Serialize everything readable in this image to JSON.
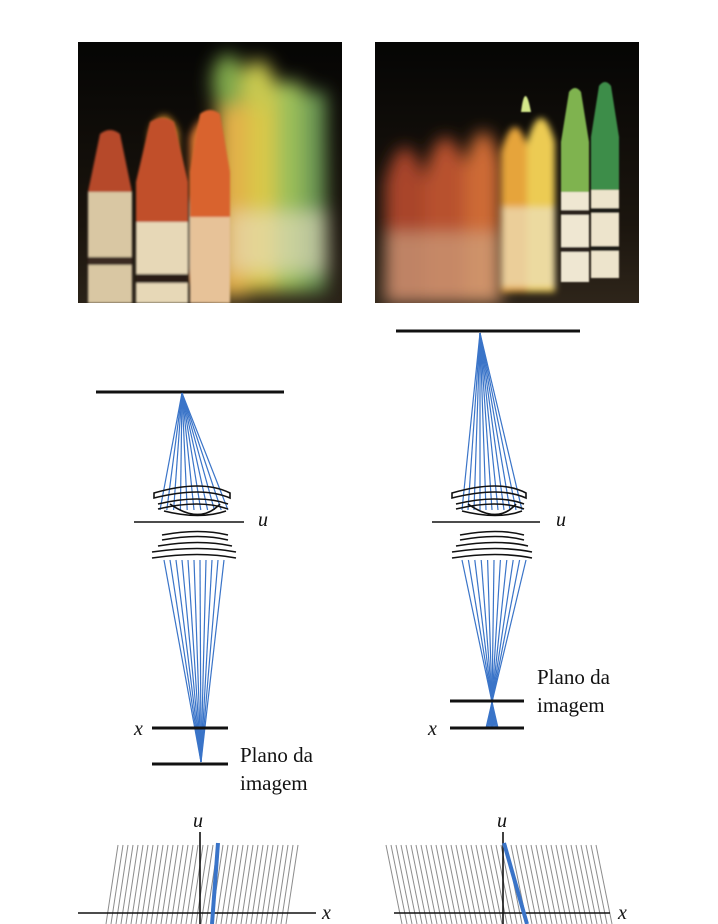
{
  "labels": {
    "axis_u": "u",
    "axis_x": "x",
    "image_plane_line1": "Plano da",
    "image_plane_line2": "imagem"
  },
  "colors": {
    "ray": "#3a74c8",
    "ray_dark": "#2f63b4",
    "line": "#111111",
    "hatch": "#8c8c8c"
  },
  "panels": [
    {
      "name": "left",
      "focus": "near",
      "photo_sharp_subject": "front crayons"
    },
    {
      "name": "right",
      "focus": "far",
      "photo_sharp_subject": "back crayons"
    }
  ]
}
